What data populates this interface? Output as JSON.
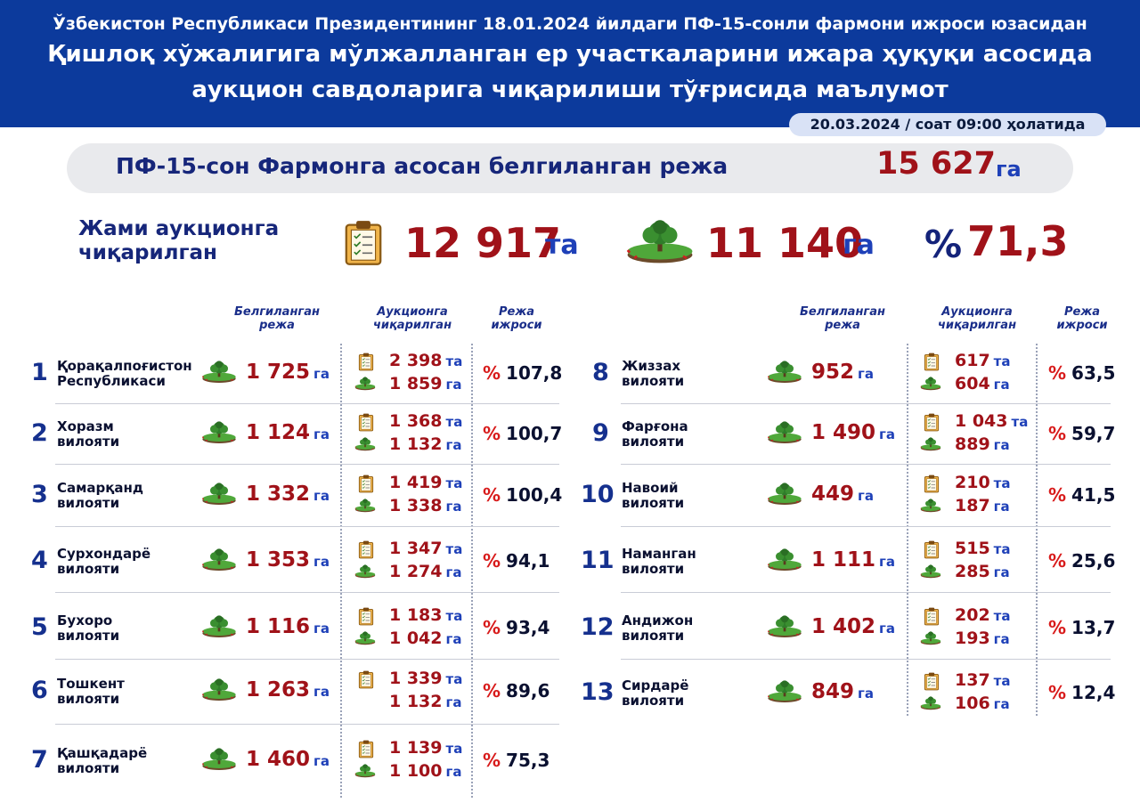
{
  "header": {
    "line1": "Ўзбекистон Республикаси Президентининг 18.01.2024 йилдаги ПФ-15-сонли фармони ижроси юзасидан",
    "line2": "Қишлоқ хўжалигига мўлжалланган ер участкаларини ижара ҳуқуқи асосида",
    "line3": "аукцион савдоларига чиқарилиши тўғрисида маълумот"
  },
  "date": "20.03.2024 / соат 09:00 ҳолатида",
  "plan": {
    "label": "ПФ-15-сон Фармонга асосан белгиланган режа",
    "value": "15 627",
    "unit": "га"
  },
  "total": {
    "label_l1": "Жами аукционга",
    "label_l2": "чиқарилган",
    "count": "12 917",
    "count_unit": "та",
    "area": "11 140",
    "area_unit": "га",
    "pct_sign": "%",
    "pct": "71,3"
  },
  "columns": {
    "plan_l1": "Белгиланган",
    "plan_l2": "режа",
    "auction_l1": "Аукционга",
    "auction_l2": "чиқарилган",
    "exec_l1": "Режа",
    "exec_l2": "ижроси"
  },
  "units": {
    "ga": "га",
    "ta": "та",
    "pct": "%"
  },
  "regions": [
    {
      "n": "1",
      "name1": "Қорақалпоғистон",
      "name2": "Республикаси",
      "plan": "1 725",
      "count": "2 398",
      "area": "1 859",
      "pct": "107,8"
    },
    {
      "n": "2",
      "name1": "Хоразм",
      "name2": "вилояти",
      "plan": "1 124",
      "count": "1 368",
      "area": "1 132",
      "pct": "100,7"
    },
    {
      "n": "3",
      "name1": "Самарқанд",
      "name2": "вилояти",
      "plan": "1 332",
      "count": "1 419",
      "area": "1 338",
      "pct": "100,4"
    },
    {
      "n": "4",
      "name1": "Сурхондарё",
      "name2": "вилояти",
      "plan": "1 353",
      "count": "1 347",
      "area": "1 274",
      "pct": "94,1"
    },
    {
      "n": "5",
      "name1": "Бухоро",
      "name2": "вилояти",
      "plan": "1 116",
      "count": "1 183",
      "area": "1 042",
      "pct": "93,4"
    },
    {
      "n": "6",
      "name1": "Тошкент",
      "name2": "вилояти",
      "plan": "1 263",
      "count": "1 339",
      "area": "1 132",
      "pct": "89,6"
    },
    {
      "n": "7",
      "name1": "Қашқадарё",
      "name2": "вилояти",
      "plan": "1 460",
      "count": "1 139",
      "area": "1 100",
      "pct": "75,3"
    },
    {
      "n": "8",
      "name1": "Жиззах",
      "name2": "вилояти",
      "plan": "952",
      "count": "617",
      "area": "604",
      "pct": "63,5"
    },
    {
      "n": "9",
      "name1": "Фарғона",
      "name2": "вилояти",
      "plan": "1 490",
      "count": "1 043",
      "area": "889",
      "pct": "59,7"
    },
    {
      "n": "10",
      "name1": "Навоий",
      "name2": "вилояти",
      "plan": "449",
      "count": "210",
      "area": "187",
      "pct": "41,5"
    },
    {
      "n": "11",
      "name1": "Наманган",
      "name2": "вилояти",
      "plan": "1 111",
      "count": "515",
      "area": "285",
      "pct": "25,6"
    },
    {
      "n": "12",
      "name1": "Андижон",
      "name2": "вилояти",
      "plan": "1 402",
      "count": "202",
      "area": "193",
      "pct": "13,7"
    },
    {
      "n": "13",
      "name1": "Сирдарё",
      "name2": "вилояти",
      "plan": "849",
      "count": "137",
      "area": "106",
      "pct": "12,4"
    }
  ]
}
